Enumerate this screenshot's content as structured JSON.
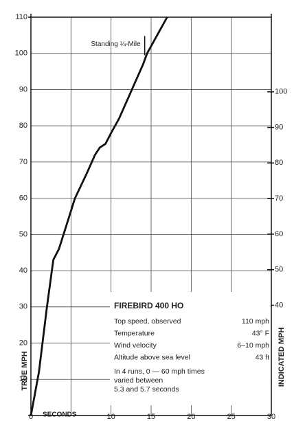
{
  "chart_data": {
    "type": "line",
    "title": "FIREBIRD 400 HO",
    "x_label": "SECONDS",
    "y_label": "TRUE MPH",
    "y2_label": "INDICATED MPH",
    "x": [
      0,
      1,
      2,
      2.8,
      3.5,
      4.5,
      5.5,
      7,
      8,
      8.6,
      9.3,
      10,
      11,
      12,
      13,
      14,
      14.5,
      16,
      17
    ],
    "series": [
      {
        "name": "Speed",
        "color": "#111111",
        "values": [
          0,
          12,
          30,
          43,
          46,
          53,
          60,
          67,
          72,
          74,
          75,
          78,
          82,
          87,
          92,
          97,
          100,
          106,
          110
        ]
      }
    ],
    "xlim": [
      0,
      30
    ],
    "xticks": [
      0,
      10,
      15,
      20,
      25,
      30
    ],
    "xgrid": [
      5
    ],
    "ylim": [
      0,
      110
    ],
    "yticks": [
      10,
      20,
      30,
      40,
      50,
      60,
      70,
      80,
      90,
      100,
      110
    ],
    "y2lim": [
      9,
      121
    ],
    "y2ticks": [
      40,
      50,
      60,
      70,
      80,
      90,
      100
    ],
    "grid": true,
    "annotations": [
      {
        "text": "Standing ¼-Mile",
        "x": 14.2,
        "y": 101
      }
    ],
    "info": {
      "rows": [
        [
          "Top speed, observed",
          "110 mph"
        ],
        [
          "Temperature",
          "43° F"
        ],
        [
          "Wind velocity",
          "6–10 mph"
        ],
        [
          "Altitude above sea level",
          "43 ft"
        ]
      ],
      "note": [
        "In 4 runs, 0 — 60 mph times",
        "varied between",
        "5.3 and 5.7 seconds"
      ]
    }
  }
}
